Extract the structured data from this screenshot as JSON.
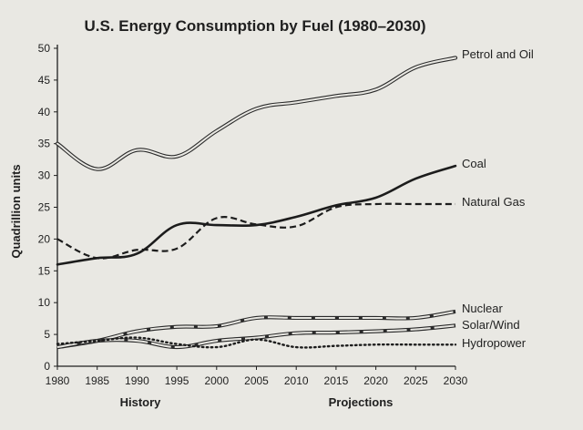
{
  "chart_data": {
    "type": "line",
    "title": "U.S. Energy Consumption by Fuel (1980–2030)",
    "xlabel": "",
    "ylabel": "Quadrillion units",
    "x": [
      1980,
      1985,
      1990,
      1995,
      2000,
      2005,
      2010,
      2015,
      2020,
      2025,
      2030
    ],
    "xticks": [
      "1980",
      "1985",
      "1990",
      "1995",
      "2000",
      "2005",
      "2010",
      "2015",
      "2020",
      "2025",
      "2030"
    ],
    "yticks": [
      "0",
      "5",
      "10",
      "15",
      "20",
      "25",
      "30",
      "35",
      "40",
      "45",
      "50"
    ],
    "xlim": [
      1980,
      2030
    ],
    "ylim": [
      0,
      50
    ],
    "grid": false,
    "series": [
      {
        "name": "Petrol and Oil",
        "style": "double",
        "values": [
          35,
          31,
          34,
          33,
          37,
          40.5,
          41.5,
          42.5,
          43.5,
          47,
          48.5
        ]
      },
      {
        "name": "Coal",
        "style": "solid",
        "values": [
          16,
          17,
          17.7,
          22.2,
          22.2,
          22.2,
          23.5,
          25.3,
          26.5,
          29.5,
          31.5
        ]
      },
      {
        "name": "Natural Gas",
        "style": "dashed",
        "values": [
          20,
          17,
          18.3,
          18.5,
          23.3,
          22.3,
          22,
          25,
          25.5,
          25.5,
          25.5
        ]
      },
      {
        "name": "Nuclear",
        "style": "double-dashed",
        "values": [
          3,
          4,
          5.5,
          6.2,
          6.3,
          7.6,
          7.6,
          7.6,
          7.6,
          7.6,
          8.6
        ]
      },
      {
        "name": "Solar/Wind",
        "style": "double-dashed",
        "values": [
          3,
          4,
          4,
          3,
          4,
          4.5,
          5.2,
          5.3,
          5.5,
          5.8,
          6.4
        ]
      },
      {
        "name": "Hydropower",
        "style": "dotted",
        "values": [
          3.5,
          4,
          4.5,
          3.5,
          3,
          4.2,
          3,
          3.2,
          3.4,
          3.4,
          3.4
        ]
      }
    ],
    "annotations": [
      "History",
      "Projections"
    ]
  }
}
